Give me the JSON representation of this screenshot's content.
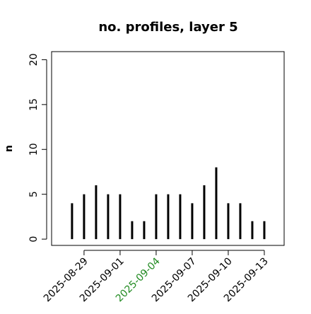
{
  "chart_data": {
    "type": "histogram-lines",
    "title": "no. profiles, layer 5",
    "y_label": "n",
    "x": [
      "2025-08-28",
      "2025-08-29",
      "2025-08-30",
      "2025-08-31",
      "2025-09-01",
      "2025-09-02",
      "2025-09-03",
      "2025-09-04",
      "2025-09-05",
      "2025-09-06",
      "2025-09-07",
      "2025-09-08",
      "2025-09-09",
      "2025-09-10",
      "2025-09-11",
      "2025-09-12",
      "2025-09-13"
    ],
    "values": [
      4,
      5,
      6,
      5,
      5,
      2,
      2,
      5,
      5,
      5,
      4,
      6,
      8,
      4,
      4,
      2,
      2
    ],
    "color": "#000000",
    "ylim": [
      -0.7,
      20.9
    ],
    "yticks": [
      0,
      5,
      10,
      15,
      20
    ],
    "xticks": [
      "2025-08-29",
      "2025-09-01",
      "2025-09-04",
      "2025-09-07",
      "2025-09-10",
      "2025-09-13"
    ],
    "xtick_label_colors": [
      "#000000",
      "#000000",
      "#228b22",
      "#000000",
      "#000000",
      "#000000"
    ]
  }
}
